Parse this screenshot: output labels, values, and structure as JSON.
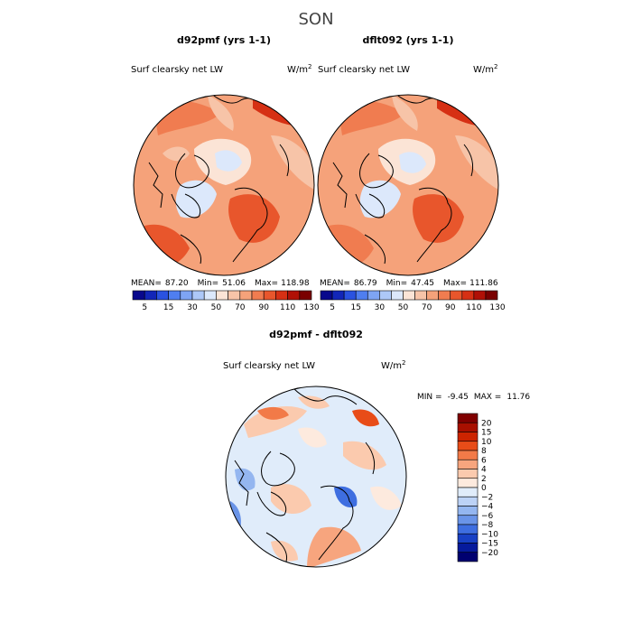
{
  "season": "SON",
  "colors": {
    "land_line": "#000000",
    "outline": "#000000"
  },
  "chart_data": [
    {
      "type": "heatmap",
      "projection": "north-polar-stereographic",
      "title": "d92pmf (yrs 1-1)",
      "field": "Surf clearsky net LW",
      "units": "W/m",
      "units_exp": "2",
      "stats": {
        "mean_label": "MEAN=",
        "mean": "87.20",
        "min_label": "Min=",
        "min": "51.06",
        "max_label": "Max=",
        "max": "118.98"
      },
      "colorbar": {
        "orientation": "horizontal",
        "levels": [
          5,
          10,
          15,
          20,
          30,
          40,
          50,
          60,
          70,
          80,
          90,
          100,
          110,
          120,
          130
        ],
        "tick_labels": [
          "5",
          "15",
          "30",
          "50",
          "70",
          "90",
          "110",
          "130"
        ],
        "colors": [
          "#08088c",
          "#1226b8",
          "#2a52e0",
          "#4f7ef0",
          "#7ea4f4",
          "#adc8f8",
          "#dce8fb",
          "#fbe4d6",
          "#f7c4a8",
          "#f5a27a",
          "#f07c50",
          "#e8562c",
          "#d63014",
          "#b01006",
          "#7a0000"
        ]
      }
    },
    {
      "type": "heatmap",
      "projection": "north-polar-stereographic",
      "title": "dflt092 (yrs 1-1)",
      "field": "Surf clearsky net LW",
      "units": "W/m",
      "units_exp": "2",
      "stats": {
        "mean_label": "MEAN=",
        "mean": "86.79",
        "min_label": "Min=",
        "min": "47.45",
        "max_label": "Max=",
        "max": "111.86"
      },
      "colorbar": {
        "orientation": "horizontal",
        "levels": [
          5,
          10,
          15,
          20,
          30,
          40,
          50,
          60,
          70,
          80,
          90,
          100,
          110,
          120,
          130
        ],
        "tick_labels": [
          "5",
          "15",
          "30",
          "50",
          "70",
          "90",
          "110",
          "130"
        ],
        "colors": [
          "#08088c",
          "#1226b8",
          "#2a52e0",
          "#4f7ef0",
          "#7ea4f4",
          "#adc8f8",
          "#dce8fb",
          "#fbe4d6",
          "#f7c4a8",
          "#f5a27a",
          "#f07c50",
          "#e8562c",
          "#d63014",
          "#b01006",
          "#7a0000"
        ]
      }
    },
    {
      "type": "heatmap",
      "projection": "north-polar-stereographic",
      "title": "d92pmf - dflt092",
      "field": "Surf clearsky net LW",
      "units": "W/m",
      "units_exp": "2",
      "stats": {
        "min_label": "MIN =",
        "min": "-9.45",
        "max_label": "MAX =",
        "max": "11.76"
      },
      "colorbar": {
        "orientation": "vertical",
        "levels": [
          20,
          15,
          10,
          8,
          6,
          4,
          2,
          0,
          -2,
          -4,
          -6,
          -8,
          -10,
          -15,
          -20
        ],
        "tick_labels": [
          "20",
          "15",
          "10",
          "8",
          "6",
          "4",
          "2",
          "0",
          "−2",
          "−4",
          "−6",
          "−8",
          "−10",
          "−15",
          "−20"
        ],
        "colors": [
          "#800000",
          "#a81000",
          "#cc2400",
          "#e84c18",
          "#f27a48",
          "#f7a57e",
          "#fbcaae",
          "#fdeade",
          "#e0ecfa",
          "#bcd2f6",
          "#94b6f0",
          "#6a94e8",
          "#3e6ee0",
          "#1840c4",
          "#061a9c",
          "#000070"
        ]
      }
    }
  ]
}
